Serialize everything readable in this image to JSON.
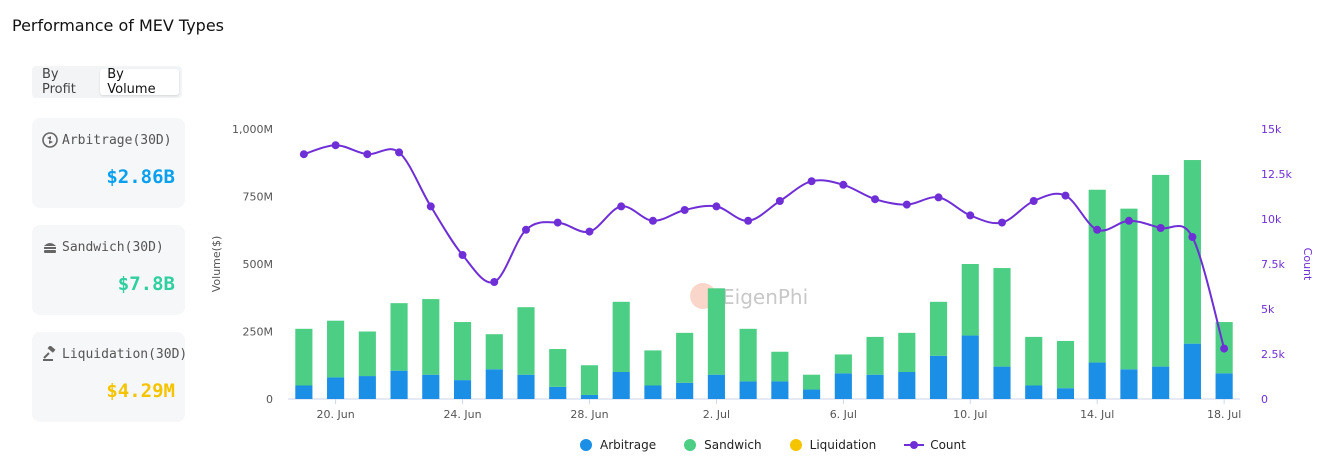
{
  "page": {
    "title": "Performance of MEV Types"
  },
  "toggle": {
    "options": [
      "By Profit",
      "By Volume"
    ],
    "selected": "By Volume"
  },
  "cards": [
    {
      "label": "Arbitrage(30D)",
      "value": "$2.86B",
      "color": "#0aa0f0",
      "icon": "arbitrage-icon"
    },
    {
      "label": "Sandwich(30D)",
      "value": "$7.8B",
      "color": "#2fcfa0",
      "icon": "sandwich-icon"
    },
    {
      "label": "Liquidation(30D)",
      "value": "$4.29M",
      "color": "#f5c400",
      "icon": "gavel-icon"
    }
  ],
  "watermark": "EigenPhi",
  "colors": {
    "arbitrage": "#1b8fe6",
    "sandwich": "#4cce85",
    "liquidation": "#f5c400",
    "count": "#6f2fd6"
  },
  "chart_data": {
    "type": "bar",
    "stacked": true,
    "categories": [
      "19 Jun",
      "20 Jun",
      "21 Jun",
      "22 Jun",
      "23 Jun",
      "24 Jun",
      "25 Jun",
      "26 Jun",
      "27 Jun",
      "28 Jun",
      "29 Jun",
      "30 Jun",
      "1 Jul",
      "2 Jul",
      "3 Jul",
      "4 Jul",
      "5 Jul",
      "6 Jul",
      "7 Jul",
      "8 Jul",
      "9 Jul",
      "10 Jul",
      "11 Jul",
      "12 Jul",
      "13 Jul",
      "14 Jul",
      "15 Jul",
      "16 Jul",
      "17 Jul",
      "18 Jul"
    ],
    "x_tick_labels": [
      "20. Jun",
      "24. Jun",
      "28. Jun",
      "2. Jul",
      "6. Jul",
      "10. Jul",
      "14. Jul",
      "18. Jul"
    ],
    "x_tick_indices": [
      1,
      5,
      9,
      13,
      17,
      21,
      25,
      29
    ],
    "series": [
      {
        "name": "Arbitrage",
        "axis": "left",
        "values": [
          50,
          80,
          85,
          105,
          90,
          70,
          110,
          90,
          45,
          15,
          100,
          50,
          60,
          90,
          65,
          65,
          35,
          95,
          90,
          100,
          160,
          235,
          120,
          50,
          40,
          135,
          110,
          120,
          205,
          95
        ]
      },
      {
        "name": "Sandwich",
        "axis": "left",
        "values": [
          210,
          210,
          165,
          250,
          280,
          215,
          130,
          250,
          140,
          110,
          260,
          130,
          185,
          320,
          195,
          110,
          55,
          70,
          140,
          145,
          200,
          265,
          365,
          180,
          175,
          640,
          595,
          710,
          680,
          190
        ]
      },
      {
        "name": "Liquidation",
        "axis": "left",
        "values": [
          0,
          0,
          0,
          0,
          0,
          0,
          0,
          0,
          0,
          0,
          0,
          0,
          0,
          0,
          0,
          0,
          0,
          0,
          0,
          0,
          0,
          0,
          0,
          0,
          0,
          0,
          0,
          0,
          0,
          0
        ]
      },
      {
        "name": "Count",
        "axis": "right",
        "type": "line",
        "values": [
          13600,
          14100,
          13600,
          13700,
          10700,
          8000,
          6500,
          9400,
          9800,
          9300,
          10700,
          9900,
          10500,
          10700,
          9900,
          11000,
          12100,
          11900,
          11100,
          10800,
          11200,
          10200,
          9800,
          11000,
          11300,
          9400,
          9900,
          9500,
          9000,
          2800
        ]
      }
    ],
    "xlabel": "",
    "ylabel": "Volume($)",
    "ylabel_right": "Count",
    "ylim": [
      0,
      1000
    ],
    "ylim_right": [
      0,
      15000
    ],
    "y_ticks": [
      "0",
      "250M",
      "500M",
      "750M",
      "1,000M"
    ],
    "y_ticks_right": [
      "0",
      "2.5k",
      "5k",
      "7.5k",
      "10k",
      "12.5k",
      "15k"
    ],
    "legend": [
      "Arbitrage",
      "Sandwich",
      "Liquidation",
      "Count"
    ],
    "legend_position": "bottom",
    "grid": false
  }
}
